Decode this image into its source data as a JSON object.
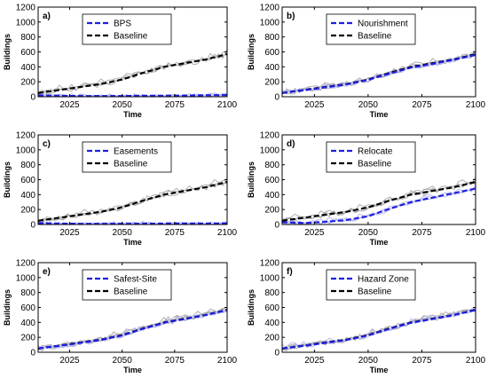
{
  "figure": {
    "colors": {
      "scenario_line": "#1f1fe0",
      "scenario_band": "#b7b7f0",
      "baseline_line": "#000000",
      "baseline_band": "#a8a8a8"
    }
  },
  "chart_data": [
    {
      "panel": "a)",
      "type": "line",
      "xlabel": "Time",
      "ylabel": "Buildings",
      "xlim": [
        2010,
        2100
      ],
      "ylim": [
        0,
        1200
      ],
      "xticks": [
        2025,
        2050,
        2075,
        2100
      ],
      "yticks": [
        0,
        200,
        400,
        600,
        800,
        1000,
        1200
      ],
      "legend_position": "top-center",
      "series": [
        {
          "name": "BPS",
          "style": "dashed",
          "color": "#1f1fe0",
          "x": [
            2010,
            2020,
            2030,
            2040,
            2050,
            2060,
            2070,
            2080,
            2090,
            2100
          ],
          "values": [
            18,
            12,
            10,
            10,
            10,
            12,
            14,
            16,
            20,
            22
          ]
        },
        {
          "name": "Baseline",
          "style": "dashed",
          "color": "#000000",
          "x": [
            2010,
            2020,
            2030,
            2040,
            2050,
            2060,
            2070,
            2080,
            2090,
            2100
          ],
          "values": [
            50,
            90,
            130,
            170,
            230,
            320,
            400,
            450,
            500,
            570
          ]
        }
      ]
    },
    {
      "panel": "b)",
      "type": "line",
      "xlabel": "Time",
      "ylabel": "Buildings",
      "xlim": [
        2010,
        2100
      ],
      "ylim": [
        0,
        1200
      ],
      "xticks": [
        2025,
        2050,
        2075,
        2100
      ],
      "yticks": [
        0,
        200,
        400,
        600,
        800,
        1000,
        1200
      ],
      "legend_position": "top-center",
      "series": [
        {
          "name": "Nourishment",
          "style": "dashed",
          "color": "#1f1fe0",
          "x": [
            2010,
            2020,
            2030,
            2040,
            2050,
            2060,
            2070,
            2080,
            2090,
            2100
          ],
          "values": [
            50,
            85,
            125,
            165,
            225,
            310,
            390,
            440,
            495,
            560
          ]
        },
        {
          "name": "Baseline",
          "style": "dashed",
          "color": "#000000",
          "x": [
            2010,
            2020,
            2030,
            2040,
            2050,
            2060,
            2070,
            2080,
            2090,
            2100
          ],
          "values": [
            50,
            90,
            130,
            170,
            230,
            320,
            400,
            450,
            500,
            570
          ]
        }
      ]
    },
    {
      "panel": "c)",
      "type": "line",
      "xlabel": "Time",
      "ylabel": "Buildings",
      "xlim": [
        2010,
        2100
      ],
      "ylim": [
        0,
        1200
      ],
      "xticks": [
        2025,
        2050,
        2075,
        2100
      ],
      "yticks": [
        0,
        200,
        400,
        600,
        800,
        1000,
        1200
      ],
      "legend_position": "top-center",
      "series": [
        {
          "name": "Easements",
          "style": "dashed",
          "color": "#1f1fe0",
          "x": [
            2010,
            2020,
            2030,
            2040,
            2050,
            2060,
            2070,
            2080,
            2090,
            2100
          ],
          "values": [
            20,
            12,
            10,
            10,
            10,
            10,
            12,
            12,
            14,
            15
          ]
        },
        {
          "name": "Baseline",
          "style": "dashed",
          "color": "#000000",
          "x": [
            2010,
            2020,
            2030,
            2040,
            2050,
            2060,
            2070,
            2080,
            2090,
            2100
          ],
          "values": [
            50,
            90,
            130,
            170,
            230,
            320,
            400,
            450,
            500,
            570
          ]
        }
      ]
    },
    {
      "panel": "d)",
      "type": "line",
      "xlabel": "Time",
      "ylabel": "Buildings",
      "xlim": [
        2010,
        2100
      ],
      "ylim": [
        0,
        1200
      ],
      "xticks": [
        2025,
        2050,
        2075,
        2100
      ],
      "yticks": [
        0,
        200,
        400,
        600,
        800,
        1000,
        1200
      ],
      "legend_position": "top-center",
      "series": [
        {
          "name": "Relocate",
          "style": "dashed",
          "color": "#1f1fe0",
          "x": [
            2010,
            2020,
            2030,
            2040,
            2050,
            2060,
            2070,
            2080,
            2090,
            2100
          ],
          "values": [
            30,
            20,
            35,
            60,
            110,
            210,
            300,
            360,
            420,
            480
          ]
        },
        {
          "name": "Baseline",
          "style": "dashed",
          "color": "#000000",
          "x": [
            2010,
            2020,
            2030,
            2040,
            2050,
            2060,
            2070,
            2080,
            2090,
            2100
          ],
          "values": [
            50,
            90,
            130,
            170,
            230,
            320,
            400,
            450,
            500,
            570
          ]
        }
      ]
    },
    {
      "panel": "e)",
      "type": "line",
      "xlabel": "Time",
      "ylabel": "Buildings",
      "xlim": [
        2010,
        2100
      ],
      "ylim": [
        0,
        1200
      ],
      "xticks": [
        2025,
        2050,
        2075,
        2100
      ],
      "yticks": [
        0,
        200,
        400,
        600,
        800,
        1000,
        1200
      ],
      "legend_position": "top-center",
      "series": [
        {
          "name": "Safest-Site",
          "style": "dashed",
          "color": "#1f1fe0",
          "x": [
            2010,
            2020,
            2030,
            2040,
            2050,
            2060,
            2070,
            2080,
            2090,
            2100
          ],
          "values": [
            50,
            85,
            125,
            165,
            225,
            315,
            395,
            445,
            500,
            565
          ]
        },
        {
          "name": "Baseline",
          "style": "dashed",
          "color": "#000000",
          "x": [
            2010,
            2020,
            2030,
            2040,
            2050,
            2060,
            2070,
            2080,
            2090,
            2100
          ],
          "values": [
            50,
            90,
            130,
            170,
            230,
            320,
            400,
            450,
            500,
            570
          ]
        }
      ]
    },
    {
      "panel": "f)",
      "type": "line",
      "xlabel": "Time",
      "ylabel": "Buildings",
      "xlim": [
        2010,
        2100
      ],
      "ylim": [
        0,
        1200
      ],
      "xticks": [
        2025,
        2050,
        2075,
        2100
      ],
      "yticks": [
        0,
        200,
        400,
        600,
        800,
        1000,
        1200
      ],
      "legend_position": "top-center",
      "series": [
        {
          "name": "Hazard Zone",
          "style": "dashed",
          "color": "#1f1fe0",
          "x": [
            2010,
            2020,
            2030,
            2040,
            2050,
            2060,
            2070,
            2080,
            2090,
            2100
          ],
          "values": [
            50,
            85,
            125,
            165,
            225,
            315,
            395,
            445,
            500,
            565
          ]
        },
        {
          "name": "Baseline",
          "style": "dashed",
          "color": "#000000",
          "x": [
            2010,
            2020,
            2030,
            2040,
            2050,
            2060,
            2070,
            2080,
            2090,
            2100
          ],
          "values": [
            50,
            90,
            130,
            170,
            230,
            320,
            400,
            450,
            500,
            570
          ]
        }
      ]
    }
  ]
}
